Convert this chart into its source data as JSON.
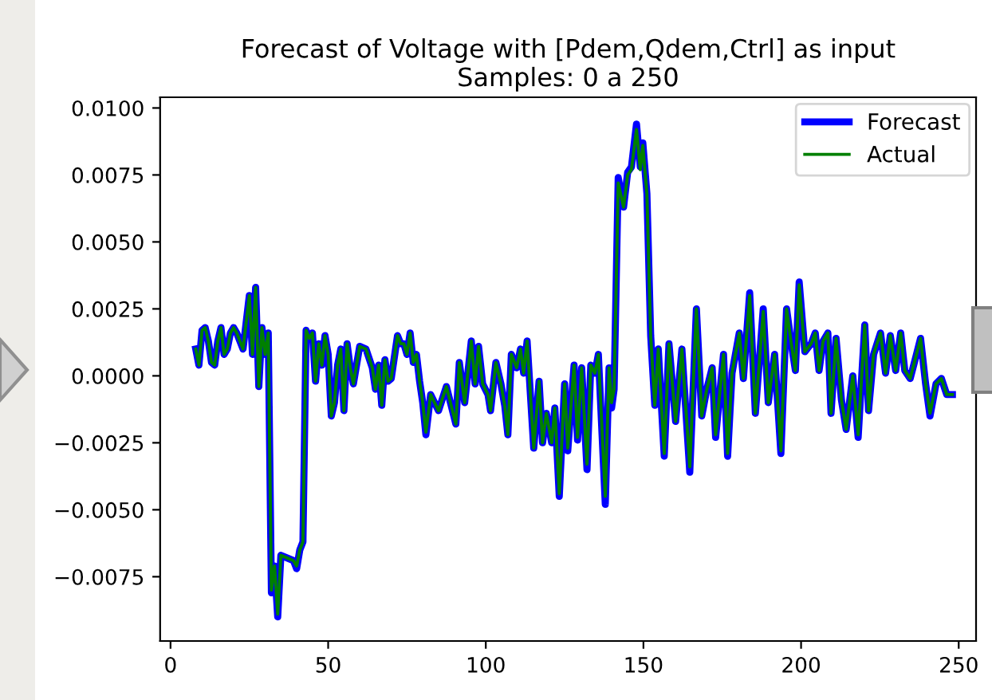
{
  "chart_data": {
    "type": "line",
    "title": "Forecast of Voltage with [Pdem,Qdem,Ctrl] as input\nSamples: 0 a 250",
    "x": [
      8,
      9,
      10,
      11,
      12,
      13,
      14,
      15,
      16,
      17,
      18,
      19,
      20,
      21,
      23,
      25,
      26,
      27,
      28,
      29,
      30,
      31,
      32,
      33,
      34,
      35,
      37,
      39,
      40,
      41,
      42,
      43,
      44,
      45,
      46,
      47,
      48,
      49,
      50,
      51,
      52,
      53,
      54,
      55,
      56,
      57,
      58,
      60,
      62,
      64,
      65,
      66,
      67,
      68,
      69,
      70,
      72,
      73,
      74,
      75,
      76,
      77,
      78,
      79,
      80,
      81,
      82.5,
      85,
      87.5,
      90.5,
      91.6,
      93.3,
      95.4,
      96.6,
      97.7,
      99,
      100.7,
      101.5,
      103.2,
      104.8,
      106,
      107,
      108.1,
      109.8,
      111,
      112,
      113.1,
      115.2,
      116.9,
      118,
      119.2,
      120.9,
      121.9,
      123.3,
      125,
      126,
      128,
      129.1,
      130.4,
      132.1,
      133.3,
      134.6,
      135.7,
      137.9,
      139.1,
      139.9,
      140.7,
      142,
      143.7,
      145,
      146.2,
      147.8,
      149,
      149.8,
      151.1,
      152.3,
      153.6,
      154.7,
      156.6,
      158.1,
      160.2,
      162.2,
      164.7,
      166.8,
      168.5,
      170.1,
      171.8,
      172.9,
      175.4,
      176.7,
      178.1,
      180.4,
      181.7,
      183.7,
      185.5,
      188,
      189.6,
      191.6,
      193.6,
      195.4,
      196.9,
      198.2,
      199.4,
      201.2,
      203.2,
      204.5,
      205.7,
      207,
      208.5,
      209.5,
      211.1,
      212.8,
      214.3,
      216.4,
      218.1,
      220.2,
      221.4,
      223,
      225.2,
      226.8,
      228.3,
      230,
      231.6,
      232.9,
      234.6,
      236.6,
      237.9,
      239.5,
      240.9,
      242.8,
      244.5,
      246.2,
      248
    ],
    "series": [
      {
        "name": "Forecast",
        "color": "#0000ff",
        "values": [
          0.001,
          0.0004,
          0.0017,
          0.0018,
          0.0013,
          0.0005,
          0.0004,
          0.0013,
          0.0018,
          0.0008,
          0.001,
          0.0016,
          0.0018,
          0.0016,
          0.001,
          0.003,
          0.0008,
          0.0033,
          -0.0004,
          0.0018,
          0.0008,
          0.0016,
          -0.0081,
          -0.0071,
          -0.009,
          -0.0067,
          -0.0068,
          -0.0069,
          -0.0072,
          -0.0065,
          -0.0062,
          0.0017,
          0.0014,
          0.0016,
          -0.0002,
          0.0012,
          0.0004,
          0.0015,
          0.0008,
          -0.0015,
          -0.001,
          0.0004,
          0.001,
          -0.0013,
          0.0012,
          0.0003,
          -0.0003,
          0.0011,
          0.001,
          0.0003,
          -0.0005,
          0.0004,
          -0.0011,
          0.0006,
          -0.0002,
          -0.0001,
          0.0015,
          0.0012,
          0.0012,
          0.0008,
          0.0016,
          0.0005,
          0.0008,
          -0.0002,
          -0.001,
          -0.0022,
          -0.0007,
          -0.0013,
          -0.0004,
          -0.0018,
          0.0005,
          -0.001,
          0.0013,
          -0.0003,
          0.0011,
          -0.0003,
          -0.0007,
          -0.0013,
          0.0005,
          -0.0003,
          -0.0011,
          -0.0022,
          0.0008,
          0.0003,
          0.001,
          0.0001,
          0.0013,
          -0.0027,
          -0.0002,
          -0.0025,
          -0.0014,
          -0.0025,
          -0.0012,
          -0.0045,
          -0.0003,
          -0.0028,
          0.0004,
          -0.0024,
          0.0003,
          -0.0035,
          0.0004,
          0.0001,
          0.0008,
          -0.0048,
          0.0003,
          -0.0012,
          -0.0005,
          0.0074,
          0.0063,
          0.0076,
          0.0078,
          0.0094,
          0.0078,
          0.0087,
          0.0068,
          0.0015,
          -0.0011,
          0.001,
          -0.003,
          0.0012,
          -0.0017,
          0.001,
          -0.0036,
          0.0025,
          -0.0015,
          -0.0005,
          0.0003,
          -0.0023,
          0.0008,
          -0.003,
          0.0001,
          0.0016,
          -0.0001,
          0.0031,
          -0.0014,
          0.0025,
          -0.001,
          0.0008,
          -0.0029,
          0.0025,
          0.0012,
          0.0002,
          0.0035,
          0.0009,
          0.0012,
          0.0016,
          0.0002,
          0.0013,
          0.0016,
          -0.0014,
          0.0014,
          -0.0009,
          -0.002,
          0.0,
          -0.0023,
          0.0019,
          -0.0013,
          0.0008,
          0.0016,
          0.0001,
          0.0015,
          0.0002,
          0.0016,
          0.0002,
          -0.0001,
          0.0008,
          0.0014,
          -0.0003,
          -0.0015,
          -0.0003,
          -0.0001,
          -0.0007,
          -0.0007
        ]
      },
      {
        "name": "Actual",
        "color": "#008000",
        "values": [
          0.001,
          0.0004,
          0.0017,
          0.0018,
          0.0013,
          0.0005,
          0.0004,
          0.0013,
          0.0018,
          0.0008,
          0.001,
          0.0016,
          0.0018,
          0.0016,
          0.001,
          0.003,
          0.0008,
          0.0033,
          -0.0004,
          0.0018,
          0.0008,
          0.0016,
          -0.008,
          -0.0071,
          -0.0089,
          -0.0067,
          -0.0068,
          -0.0069,
          -0.0071,
          -0.0065,
          -0.0062,
          0.0017,
          0.0014,
          0.0016,
          -0.0002,
          0.0012,
          0.0004,
          0.0015,
          0.0008,
          -0.0015,
          -0.001,
          0.0004,
          0.001,
          -0.0013,
          0.0012,
          0.0003,
          -0.0003,
          0.0011,
          0.001,
          0.0003,
          -0.0005,
          0.0004,
          -0.0011,
          0.0006,
          -0.0002,
          -0.0001,
          0.0015,
          0.0012,
          0.0012,
          0.0008,
          0.0016,
          0.0005,
          0.0008,
          -0.0002,
          -0.001,
          -0.0021,
          -0.0007,
          -0.0013,
          -0.0004,
          -0.0018,
          0.0005,
          -0.001,
          0.0013,
          -0.0003,
          0.0011,
          -0.0003,
          -0.0007,
          -0.0013,
          0.0005,
          -0.0003,
          -0.0011,
          -0.0022,
          0.0008,
          0.0003,
          0.001,
          0.0001,
          0.0013,
          -0.0027,
          -0.0002,
          -0.0025,
          -0.0014,
          -0.0025,
          -0.0012,
          -0.0044,
          -0.0003,
          -0.0027,
          0.0004,
          -0.0023,
          0.0003,
          -0.0033,
          0.0004,
          0.0001,
          0.0008,
          -0.0045,
          0.0003,
          -0.001,
          -0.0005,
          0.0072,
          0.0063,
          0.0075,
          0.0077,
          0.0092,
          0.0077,
          0.0086,
          0.0068,
          0.0015,
          -0.0011,
          0.001,
          -0.0029,
          0.0012,
          -0.0017,
          0.001,
          -0.0034,
          0.0025,
          -0.0015,
          -0.0005,
          0.0003,
          -0.0022,
          0.0008,
          -0.0029,
          0.0001,
          0.0016,
          -0.0001,
          0.003,
          -0.0014,
          0.0024,
          -0.001,
          0.0008,
          -0.0028,
          0.0025,
          0.0012,
          0.0002,
          0.0034,
          0.0009,
          0.0012,
          0.0016,
          0.0002,
          0.0013,
          0.0016,
          -0.0014,
          0.0014,
          -0.0009,
          -0.002,
          0.0,
          -0.0022,
          0.0019,
          -0.0013,
          0.0008,
          0.0016,
          0.0001,
          0.0015,
          0.0002,
          0.0016,
          0.0002,
          -0.0001,
          0.0008,
          0.0014,
          -0.0003,
          -0.0014,
          -0.0003,
          -0.0001,
          -0.0007,
          -0.0007
        ]
      }
    ],
    "xlim": [
      -3.3,
      255.5
    ],
    "ylim": [
      -0.0099,
      0.0104
    ],
    "xticks": [
      0,
      50,
      100,
      150,
      200,
      250
    ],
    "yticks": [
      {
        "value": -0.0075,
        "label": "−0.0075"
      },
      {
        "value": -0.005,
        "label": "−0.0050"
      },
      {
        "value": -0.0025,
        "label": "−0.0025"
      },
      {
        "value": 0.0,
        "label": "0.0000"
      },
      {
        "value": 0.0025,
        "label": "0.0025"
      },
      {
        "value": 0.005,
        "label": "0.0050"
      },
      {
        "value": 0.0075,
        "label": "0.0075"
      },
      {
        "value": 0.01,
        "label": "0.0100"
      }
    ],
    "grid": false,
    "legend": "top right"
  }
}
